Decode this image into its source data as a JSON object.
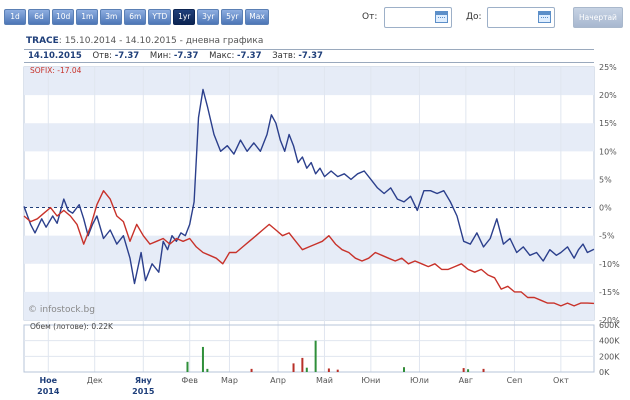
{
  "ranges": [
    "1d",
    "6d",
    "10d",
    "1m",
    "3m",
    "6m",
    "YTD",
    "1yr",
    "3yr",
    "5yr",
    "Max"
  ],
  "active_range": "1yr",
  "from_label": "От:",
  "to_label": "До:",
  "start_button": "Начертай",
  "header": {
    "ticker": "TRACE",
    "period": ": 15.10.2014 - 14.10.2015 - дневна графика"
  },
  "quote": {
    "date": "14.10.2015",
    "open_label": "Отв:",
    "open": "-7.37",
    "min_label": "Мин:",
    "min": "-7.37",
    "max_label": "Макс:",
    "max": "-7.37",
    "close_label": "Затв:",
    "close": "-7.37"
  },
  "sofix_label": "SOFIX: -17.04",
  "volume_label": "Обем (лотове): 0.22K",
  "watermark": "© infostock.bg",
  "colors": {
    "trace": "#2b3f8c",
    "sofix": "#c8322a",
    "vol_up": "#2f8f3a",
    "vol_down": "#b83028",
    "band": "#e6ecf7"
  },
  "chart_data": [
    {
      "type": "line",
      "ylim": [
        -20,
        25
      ],
      "y_ticks": [
        "25%",
        "20%",
        "15%",
        "10%",
        "5%",
        "0%",
        "-5%",
        "-10%",
        "-15%",
        "-20%"
      ],
      "x_ticks": [
        "Ное",
        "Дек",
        "Яну",
        "Фев",
        "Мар",
        "Апр",
        "Май",
        "Юни",
        "Юли",
        "Авг",
        "Сеп",
        "Окт"
      ],
      "x_ticks_year": {
        "Ное": "2014",
        "Яну": "2015"
      },
      "series": [
        {
          "name": "TRACE",
          "x": [
            0,
            3,
            5,
            8,
            10,
            13,
            15,
            18,
            20,
            22,
            25,
            27,
            29,
            31,
            33,
            36,
            39,
            42,
            45,
            48,
            50,
            53,
            55,
            58,
            61,
            63,
            65,
            67,
            69,
            71,
            73,
            75,
            77,
            79,
            81,
            83,
            86,
            89,
            92,
            95,
            98,
            101,
            104,
            107,
            110,
            112,
            114,
            116,
            118,
            120,
            122,
            124,
            126,
            128,
            130,
            132,
            134,
            136,
            139,
            142,
            145,
            148,
            151,
            154,
            157,
            160,
            163,
            166,
            169,
            172,
            175,
            178,
            181,
            184,
            187,
            190,
            193,
            196,
            199,
            202,
            205,
            208,
            211,
            214,
            217,
            220,
            223,
            226,
            229,
            232,
            235,
            238,
            241,
            243,
            246,
            249,
            251,
            253,
            255,
            258
          ],
          "y": [
            0.2,
            -3.0,
            -4.5,
            -2.0,
            -3.5,
            -1.5,
            -2.8,
            1.5,
            -0.5,
            -1.0,
            0.5,
            -2.0,
            -5.0,
            -3.0,
            -1.5,
            -5.5,
            -4.0,
            -6.5,
            -5.0,
            -9.0,
            -13.5,
            -8.0,
            -13.0,
            -10.0,
            -11.5,
            -6.0,
            -7.5,
            -5.0,
            -6.0,
            -4.5,
            -5.0,
            -3.0,
            1.0,
            16.0,
            21.0,
            18.0,
            13.0,
            10.0,
            11.0,
            9.5,
            12.0,
            10.0,
            11.5,
            10.0,
            13.0,
            16.5,
            15.0,
            12.0,
            10.0,
            13.0,
            11.0,
            8.0,
            9.0,
            7.0,
            8.0,
            6.0,
            7.0,
            5.5,
            6.5,
            5.5,
            6.0,
            5.0,
            6.0,
            6.5,
            5.0,
            3.5,
            2.5,
            3.5,
            1.5,
            1.0,
            2.0,
            -0.5,
            3.0,
            3.0,
            2.5,
            3.0,
            1.0,
            -1.5,
            -6.0,
            -6.5,
            -4.5,
            -7.0,
            -5.5,
            -2.0,
            -6.5,
            -5.5,
            -8.0,
            -7.0,
            -8.5,
            -8.0,
            -9.5,
            -7.5,
            -8.5,
            -8.0,
            -7.0,
            -9.0,
            -7.5,
            -6.5,
            -8.0,
            -7.4
          ]
        },
        {
          "name": "SOFIX",
          "x": [
            0,
            3,
            6,
            9,
            12,
            15,
            18,
            21,
            24,
            27,
            30,
            33,
            36,
            39,
            42,
            45,
            48,
            51,
            54,
            57,
            60,
            63,
            66,
            69,
            72,
            75,
            78,
            81,
            84,
            87,
            90,
            93,
            96,
            99,
            102,
            105,
            108,
            111,
            114,
            117,
            120,
            123,
            126,
            129,
            132,
            135,
            138,
            141,
            144,
            147,
            150,
            153,
            156,
            159,
            162,
            165,
            168,
            171,
            174,
            177,
            180,
            183,
            186,
            189,
            192,
            195,
            198,
            201,
            204,
            207,
            210,
            213,
            216,
            219,
            222,
            225,
            228,
            231,
            234,
            237,
            240,
            243,
            246,
            249,
            252,
            255,
            258
          ],
          "y": [
            -1.5,
            -2.5,
            -2.0,
            -1.0,
            0.0,
            -1.5,
            -0.5,
            -1.5,
            -3.0,
            -6.5,
            -3.5,
            0.5,
            3.0,
            1.5,
            -1.5,
            -2.5,
            -6.0,
            -3.0,
            -5.0,
            -6.5,
            -6.0,
            -5.5,
            -6.5,
            -5.5,
            -6.0,
            -5.5,
            -7.0,
            -8.0,
            -8.5,
            -9.0,
            -10.0,
            -8.0,
            -8.0,
            -7.0,
            -6.0,
            -5.0,
            -4.0,
            -3.0,
            -4.0,
            -5.0,
            -4.5,
            -6.0,
            -7.5,
            -7.0,
            -6.5,
            -6.0,
            -5.0,
            -6.5,
            -7.5,
            -8.0,
            -9.0,
            -9.5,
            -9.0,
            -8.0,
            -8.5,
            -9.0,
            -9.5,
            -9.0,
            -10.0,
            -9.5,
            -10.0,
            -10.5,
            -10.0,
            -11.0,
            -11.0,
            -10.5,
            -10.0,
            -11.0,
            -11.5,
            -11.0,
            -12.0,
            -12.5,
            -14.5,
            -14.0,
            -15.0,
            -15.0,
            -16.0,
            -16.0,
            -16.5,
            -17.0,
            -17.0,
            -17.5,
            -17.0,
            -17.5,
            -17.0,
            -17.0,
            -17.04
          ]
        }
      ]
    },
    {
      "type": "bar",
      "ylim": [
        0,
        600
      ],
      "y_ticks": [
        "600K",
        "400K",
        "200K",
        "0K"
      ],
      "x": [
        74,
        81,
        83,
        103,
        122,
        126,
        128,
        132,
        138,
        142,
        172,
        172,
        199,
        201,
        208
      ],
      "values": [
        130,
        320,
        40,
        40,
        110,
        180,
        55,
        400,
        45,
        30,
        60,
        60,
        50,
        35,
        40
      ],
      "direction": [
        "up",
        "up",
        "up",
        "down",
        "down",
        "down",
        "up",
        "up",
        "down",
        "down",
        "down",
        "up",
        "down",
        "up",
        "down"
      ]
    }
  ]
}
